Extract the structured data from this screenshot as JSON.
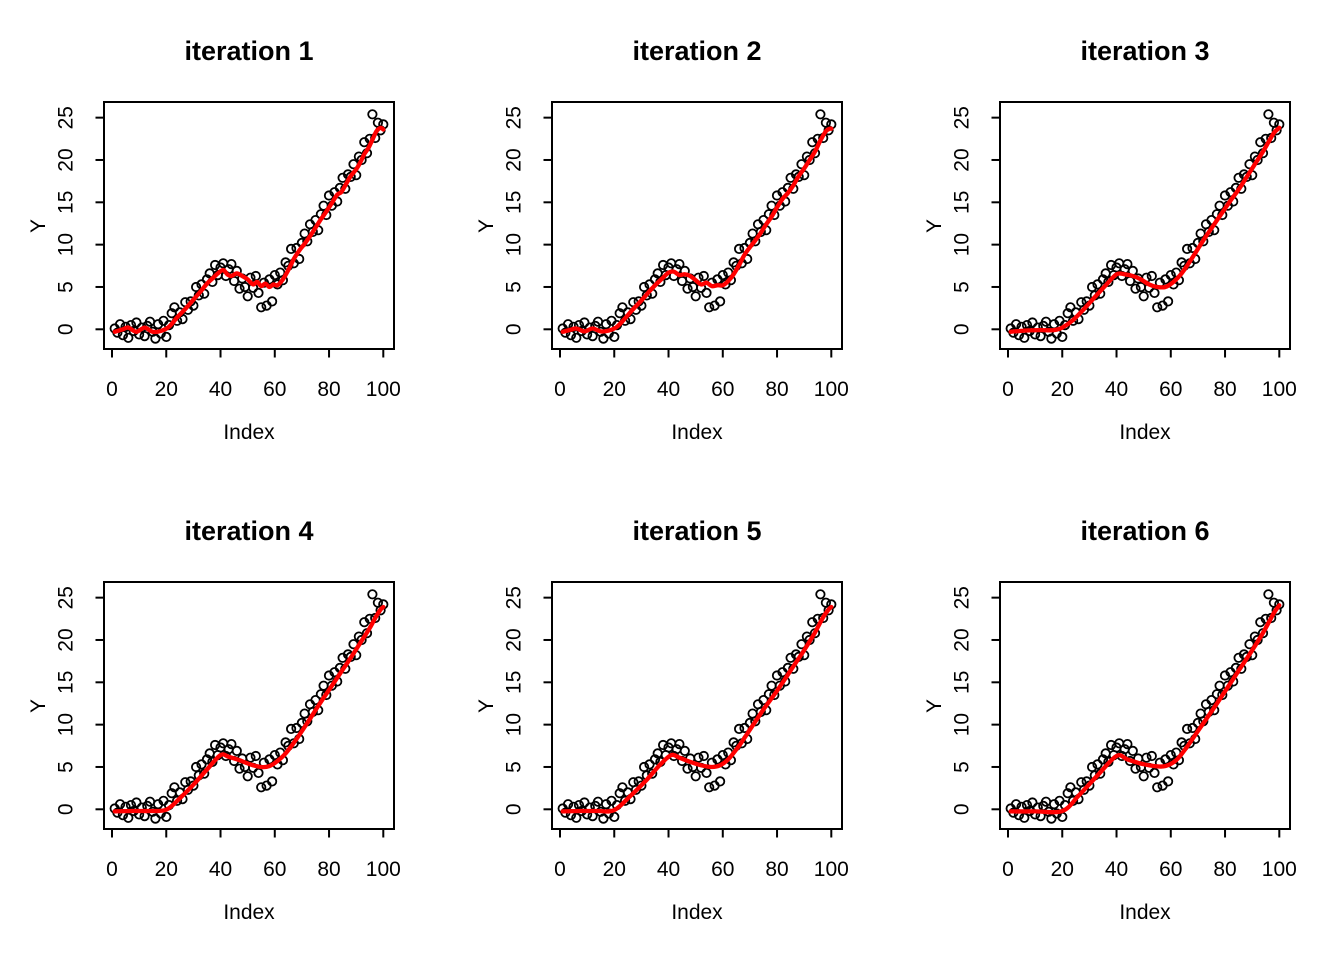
{
  "chart_data": {
    "type": "scatter",
    "layout": "2x3-grid",
    "grid": false,
    "xlabel": "Index",
    "ylabel": "Y",
    "xlim": [
      0,
      100
    ],
    "ylim": [
      0,
      25
    ],
    "x_ticks": [
      0,
      20,
      40,
      60,
      80,
      100
    ],
    "y_ticks": [
      0,
      5,
      10,
      15,
      20,
      25
    ],
    "point_style": "open-circle",
    "point_color": "#000000",
    "line_color": "#ff0000",
    "x": [
      1,
      2,
      3,
      4,
      5,
      6,
      7,
      8,
      9,
      10,
      11,
      12,
      13,
      14,
      15,
      16,
      17,
      18,
      19,
      20,
      21,
      22,
      23,
      24,
      25,
      26,
      27,
      28,
      29,
      30,
      31,
      32,
      33,
      34,
      35,
      36,
      37,
      38,
      39,
      40,
      41,
      42,
      43,
      44,
      45,
      46,
      47,
      48,
      49,
      50,
      51,
      52,
      53,
      54,
      55,
      56,
      57,
      58,
      59,
      60,
      61,
      62,
      63,
      64,
      65,
      66,
      67,
      68,
      69,
      70,
      71,
      72,
      73,
      74,
      75,
      76,
      77,
      78,
      79,
      80,
      81,
      82,
      83,
      84,
      85,
      86,
      87,
      88,
      89,
      90,
      91,
      92,
      93,
      94,
      95,
      96,
      97,
      98,
      99,
      100
    ],
    "y": [
      0.1,
      -0.4,
      0.6,
      -0.7,
      0.3,
      -1.0,
      0.5,
      -0.2,
      0.8,
      -0.6,
      0.2,
      -0.8,
      0.4,
      0.9,
      -0.3,
      -1.1,
      0.6,
      -0.5,
      1.0,
      -0.9,
      0.5,
      1.9,
      2.6,
      1.0,
      2.0,
      1.2,
      3.2,
      2.3,
      3.3,
      2.8,
      5.0,
      4.0,
      5.3,
      4.2,
      5.9,
      6.6,
      5.6,
      7.6,
      6.4,
      7.3,
      7.8,
      6.3,
      7.1,
      7.7,
      5.7,
      6.9,
      4.8,
      6.0,
      5.0,
      3.9,
      6.1,
      4.9,
      6.3,
      4.3,
      2.6,
      5.5,
      2.8,
      5.9,
      3.3,
      6.4,
      5.3,
      6.7,
      5.8,
      7.9,
      7.5,
      9.5,
      7.8,
      9.6,
      8.3,
      10.2,
      11.3,
      10.4,
      12.4,
      11.5,
      12.9,
      11.7,
      13.6,
      14.6,
      13.5,
      15.8,
      14.6,
      16.2,
      15.1,
      16.7,
      17.9,
      16.6,
      18.3,
      18.0,
      19.5,
      18.2,
      20.4,
      20.0,
      22.1,
      20.8,
      22.5,
      25.4,
      22.6,
      24.4,
      23.5,
      24.2
    ],
    "panels": [
      {
        "title": "iteration 1",
        "smoother": [
          [
            1,
            -0.3
          ],
          [
            4,
            0.0
          ],
          [
            6,
            0.2
          ],
          [
            9,
            -0.3
          ],
          [
            12,
            0.2
          ],
          [
            15,
            -0.3
          ],
          [
            18,
            -0.2
          ],
          [
            21,
            0.3
          ],
          [
            24,
            1.4
          ],
          [
            27,
            2.4
          ],
          [
            30,
            3.5
          ],
          [
            33,
            4.6
          ],
          [
            35,
            5.4
          ],
          [
            37,
            6.0
          ],
          [
            39,
            6.6
          ],
          [
            41,
            7.0
          ],
          [
            42.5,
            6.5
          ],
          [
            44,
            6.3
          ],
          [
            46,
            6.6
          ],
          [
            48,
            6.3
          ],
          [
            50,
            5.9
          ],
          [
            52,
            5.3
          ],
          [
            53.5,
            5.6
          ],
          [
            55,
            5.1
          ],
          [
            56.5,
            5.4
          ],
          [
            58,
            5.0
          ],
          [
            59.5,
            5.3
          ],
          [
            61,
            5.2
          ],
          [
            63,
            5.9
          ],
          [
            65,
            7.0
          ],
          [
            67,
            8.3
          ],
          [
            69,
            9.3
          ],
          [
            71,
            10.1
          ],
          [
            73,
            11.0
          ],
          [
            75,
            12.0
          ],
          [
            77,
            13.0
          ],
          [
            79,
            13.9
          ],
          [
            81,
            14.9
          ],
          [
            83,
            15.9
          ],
          [
            84.5,
            16.2
          ],
          [
            86,
            17.0
          ],
          [
            88,
            18.1
          ],
          [
            90,
            18.9
          ],
          [
            91.5,
            19.7
          ],
          [
            93,
            20.7
          ],
          [
            94.5,
            21.4
          ],
          [
            96,
            22.4
          ],
          [
            97.5,
            23.4
          ],
          [
            99,
            23.8
          ],
          [
            100,
            23.6
          ]
        ]
      },
      {
        "title": "iteration 2",
        "smoother": [
          [
            1,
            -0.3
          ],
          [
            4,
            -0.05
          ],
          [
            6,
            0.1
          ],
          [
            9,
            -0.25
          ],
          [
            12,
            0.1
          ],
          [
            15,
            -0.25
          ],
          [
            18,
            -0.15
          ],
          [
            21,
            0.3
          ],
          [
            24,
            1.3
          ],
          [
            27,
            2.4
          ],
          [
            30,
            3.4
          ],
          [
            33,
            4.5
          ],
          [
            36,
            5.5
          ],
          [
            38,
            6.1
          ],
          [
            40,
            6.7
          ],
          [
            42,
            6.8
          ],
          [
            44,
            6.4
          ],
          [
            46,
            6.5
          ],
          [
            48,
            6.3
          ],
          [
            50,
            5.8
          ],
          [
            52,
            5.3
          ],
          [
            54,
            5.5
          ],
          [
            56,
            5.1
          ],
          [
            58,
            5.2
          ],
          [
            60,
            5.2
          ],
          [
            62,
            5.7
          ],
          [
            64,
            6.5
          ],
          [
            66,
            7.6
          ],
          [
            68,
            8.8
          ],
          [
            70,
            9.7
          ],
          [
            72,
            10.5
          ],
          [
            74,
            11.4
          ],
          [
            76,
            12.4
          ],
          [
            78,
            13.3
          ],
          [
            80,
            14.4
          ],
          [
            82,
            15.4
          ],
          [
            84,
            16.1
          ],
          [
            86,
            17.0
          ],
          [
            88,
            18.1
          ],
          [
            90,
            19.0
          ],
          [
            92,
            20.0
          ],
          [
            94,
            21.0
          ],
          [
            96,
            22.3
          ],
          [
            98,
            23.4
          ],
          [
            99.5,
            23.7
          ],
          [
            100,
            23.7
          ]
        ]
      },
      {
        "title": "iteration 3",
        "smoother": [
          [
            1,
            -0.3
          ],
          [
            6,
            -0.15
          ],
          [
            12,
            -0.1
          ],
          [
            17,
            -0.1
          ],
          [
            20,
            0.2
          ],
          [
            24,
            1.1
          ],
          [
            28,
            2.4
          ],
          [
            32,
            3.8
          ],
          [
            36,
            5.2
          ],
          [
            40,
            6.5
          ],
          [
            43,
            6.5
          ],
          [
            46,
            6.3
          ],
          [
            49,
            5.9
          ],
          [
            52,
            5.3
          ],
          [
            55,
            5.0
          ],
          [
            58,
            5.0
          ],
          [
            61,
            5.6
          ],
          [
            64,
            6.6
          ],
          [
            67,
            8.0
          ],
          [
            70,
            9.5
          ],
          [
            73,
            11.0
          ],
          [
            76,
            12.4
          ],
          [
            79,
            13.8
          ],
          [
            82,
            15.2
          ],
          [
            85,
            16.5
          ],
          [
            88,
            18.0
          ],
          [
            91,
            19.5
          ],
          [
            94,
            21.0
          ],
          [
            96,
            22.1
          ],
          [
            98,
            23.2
          ],
          [
            100,
            23.8
          ]
        ]
      },
      {
        "title": "iteration 4",
        "smoother": [
          [
            1,
            -0.25
          ],
          [
            8,
            -0.2
          ],
          [
            14,
            -0.2
          ],
          [
            20,
            -0.05
          ],
          [
            25,
            1.3
          ],
          [
            30,
            2.9
          ],
          [
            35,
            4.7
          ],
          [
            40,
            6.4
          ],
          [
            43,
            6.2
          ],
          [
            47,
            5.8
          ],
          [
            51,
            5.3
          ],
          [
            55,
            5.0
          ],
          [
            58,
            5.1
          ],
          [
            61,
            5.7
          ],
          [
            64,
            6.6
          ],
          [
            68,
            8.3
          ],
          [
            72,
            10.2
          ],
          [
            76,
            12.2
          ],
          [
            80,
            14.1
          ],
          [
            84,
            16.0
          ],
          [
            88,
            17.9
          ],
          [
            92,
            19.9
          ],
          [
            95,
            21.4
          ],
          [
            97,
            22.6
          ],
          [
            99,
            23.6
          ],
          [
            100,
            23.9
          ]
        ]
      },
      {
        "title": "iteration 5",
        "smoother": [
          [
            1,
            -0.25
          ],
          [
            8,
            -0.2
          ],
          [
            14,
            -0.2
          ],
          [
            20,
            -0.1
          ],
          [
            26,
            1.6
          ],
          [
            32,
            3.5
          ],
          [
            37,
            5.3
          ],
          [
            41,
            6.4
          ],
          [
            44,
            6.1
          ],
          [
            48,
            5.6
          ],
          [
            52,
            5.2
          ],
          [
            56,
            5.0
          ],
          [
            59,
            5.2
          ],
          [
            62,
            5.9
          ],
          [
            66,
            7.5
          ],
          [
            70,
            9.4
          ],
          [
            75,
            11.8
          ],
          [
            80,
            14.0
          ],
          [
            85,
            16.4
          ],
          [
            90,
            18.8
          ],
          [
            94,
            20.9
          ],
          [
            97,
            22.7
          ],
          [
            99,
            23.6
          ],
          [
            100,
            23.9
          ]
        ]
      },
      {
        "title": "iteration 6",
        "smoother": [
          [
            1,
            -0.25
          ],
          [
            10,
            -0.25
          ],
          [
            20,
            -0.2
          ],
          [
            26,
            1.6
          ],
          [
            33,
            4.0
          ],
          [
            40,
            6.3
          ],
          [
            44,
            5.9
          ],
          [
            49,
            5.4
          ],
          [
            54,
            5.1
          ],
          [
            58,
            5.1
          ],
          [
            62,
            5.8
          ],
          [
            66,
            7.4
          ],
          [
            71,
            9.7
          ],
          [
            77,
            12.5
          ],
          [
            83,
            15.4
          ],
          [
            89,
            18.3
          ],
          [
            93,
            20.3
          ],
          [
            96,
            22.0
          ],
          [
            98,
            23.2
          ],
          [
            100,
            24.1
          ]
        ]
      }
    ]
  }
}
